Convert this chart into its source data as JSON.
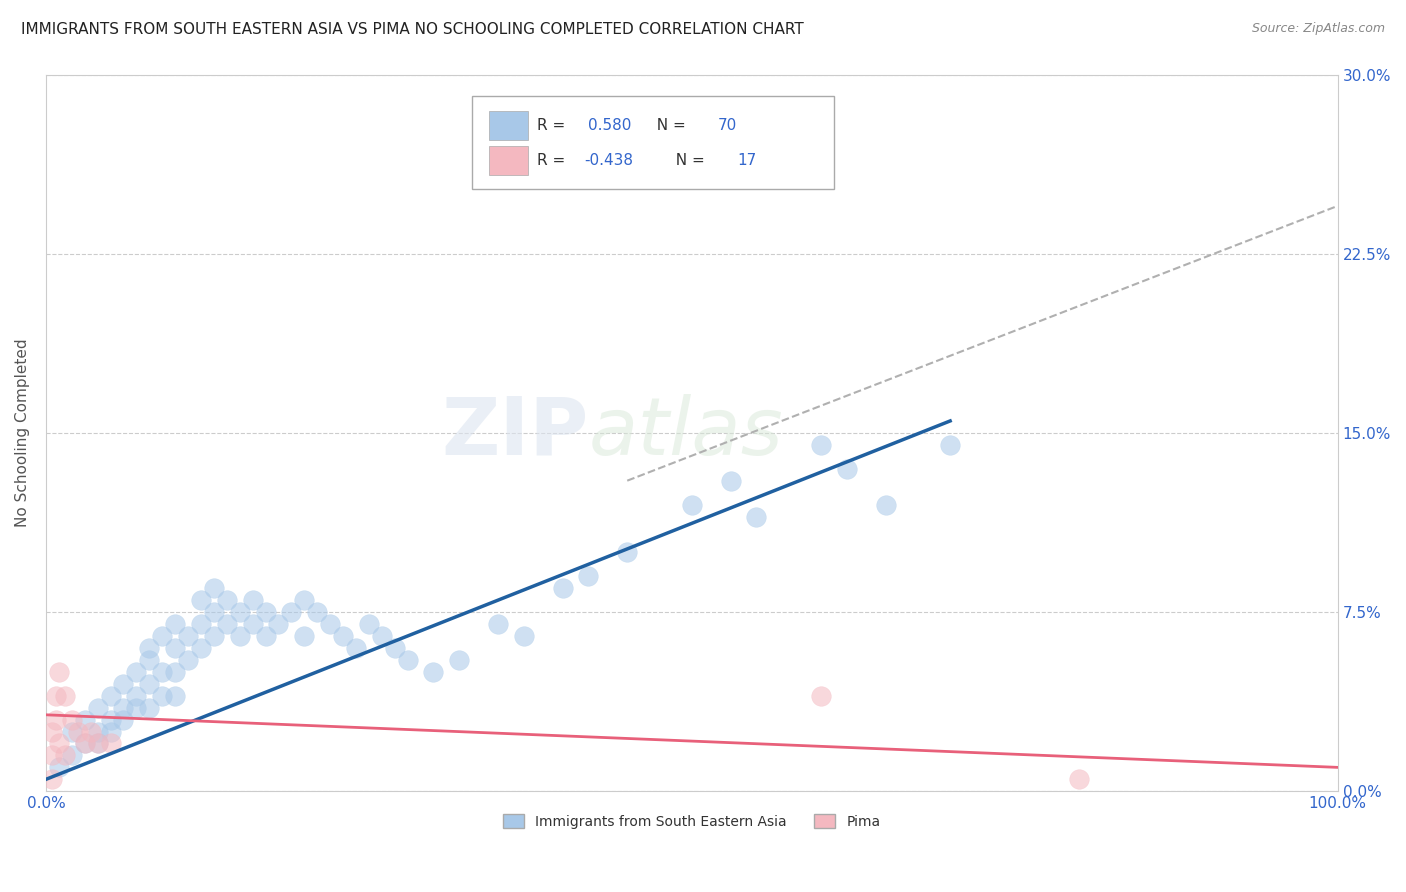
{
  "title": "IMMIGRANTS FROM SOUTH EASTERN ASIA VS PIMA NO SCHOOLING COMPLETED CORRELATION CHART",
  "source": "Source: ZipAtlas.com",
  "ylabel": "No Schooling Completed",
  "xlim": [
    0.0,
    1.0
  ],
  "ylim": [
    0.0,
    0.3
  ],
  "yticks": [
    0.0,
    0.075,
    0.15,
    0.225,
    0.3
  ],
  "ytick_labels": [
    "0.0%",
    "7.5%",
    "15.0%",
    "22.5%",
    "30.0%"
  ],
  "xticks": [
    0.0,
    1.0
  ],
  "xtick_labels": [
    "0.0%",
    "100.0%"
  ],
  "blue_color": "#a8c8e8",
  "pink_color": "#f4b8c0",
  "line_blue": "#2060a0",
  "line_pink": "#e8607a",
  "line_gray": "#b0b0b0",
  "blue_scatter_x": [
    0.01,
    0.02,
    0.02,
    0.03,
    0.03,
    0.04,
    0.04,
    0.04,
    0.05,
    0.05,
    0.05,
    0.06,
    0.06,
    0.06,
    0.07,
    0.07,
    0.07,
    0.08,
    0.08,
    0.08,
    0.08,
    0.09,
    0.09,
    0.09,
    0.1,
    0.1,
    0.1,
    0.1,
    0.11,
    0.11,
    0.12,
    0.12,
    0.12,
    0.13,
    0.13,
    0.13,
    0.14,
    0.14,
    0.15,
    0.15,
    0.16,
    0.16,
    0.17,
    0.17,
    0.18,
    0.19,
    0.2,
    0.2,
    0.21,
    0.22,
    0.23,
    0.24,
    0.25,
    0.26,
    0.27,
    0.28,
    0.3,
    0.32,
    0.35,
    0.37,
    0.4,
    0.42,
    0.45,
    0.5,
    0.53,
    0.55,
    0.6,
    0.62,
    0.65,
    0.7
  ],
  "blue_scatter_y": [
    0.01,
    0.015,
    0.025,
    0.02,
    0.03,
    0.025,
    0.035,
    0.02,
    0.03,
    0.04,
    0.025,
    0.035,
    0.045,
    0.03,
    0.04,
    0.05,
    0.035,
    0.055,
    0.045,
    0.035,
    0.06,
    0.05,
    0.04,
    0.065,
    0.06,
    0.05,
    0.04,
    0.07,
    0.055,
    0.065,
    0.07,
    0.06,
    0.08,
    0.065,
    0.075,
    0.085,
    0.07,
    0.08,
    0.075,
    0.065,
    0.08,
    0.07,
    0.075,
    0.065,
    0.07,
    0.075,
    0.065,
    0.08,
    0.075,
    0.07,
    0.065,
    0.06,
    0.07,
    0.065,
    0.06,
    0.055,
    0.05,
    0.055,
    0.07,
    0.065,
    0.085,
    0.09,
    0.1,
    0.12,
    0.13,
    0.115,
    0.145,
    0.135,
    0.12,
    0.145
  ],
  "pink_scatter_x": [
    0.005,
    0.005,
    0.005,
    0.008,
    0.008,
    0.01,
    0.01,
    0.015,
    0.015,
    0.02,
    0.025,
    0.03,
    0.035,
    0.04,
    0.05,
    0.6,
    0.8
  ],
  "pink_scatter_y": [
    0.025,
    0.015,
    0.005,
    0.04,
    0.03,
    0.05,
    0.02,
    0.04,
    0.015,
    0.03,
    0.025,
    0.02,
    0.025,
    0.02,
    0.02,
    0.04,
    0.005
  ],
  "blue_line_x": [
    0.0,
    0.7
  ],
  "blue_line_y": [
    0.005,
    0.155
  ],
  "gray_line_x": [
    0.45,
    1.0
  ],
  "gray_line_y": [
    0.13,
    0.245
  ],
  "pink_line_x": [
    0.0,
    1.0
  ],
  "pink_line_y": [
    0.032,
    0.01
  ]
}
